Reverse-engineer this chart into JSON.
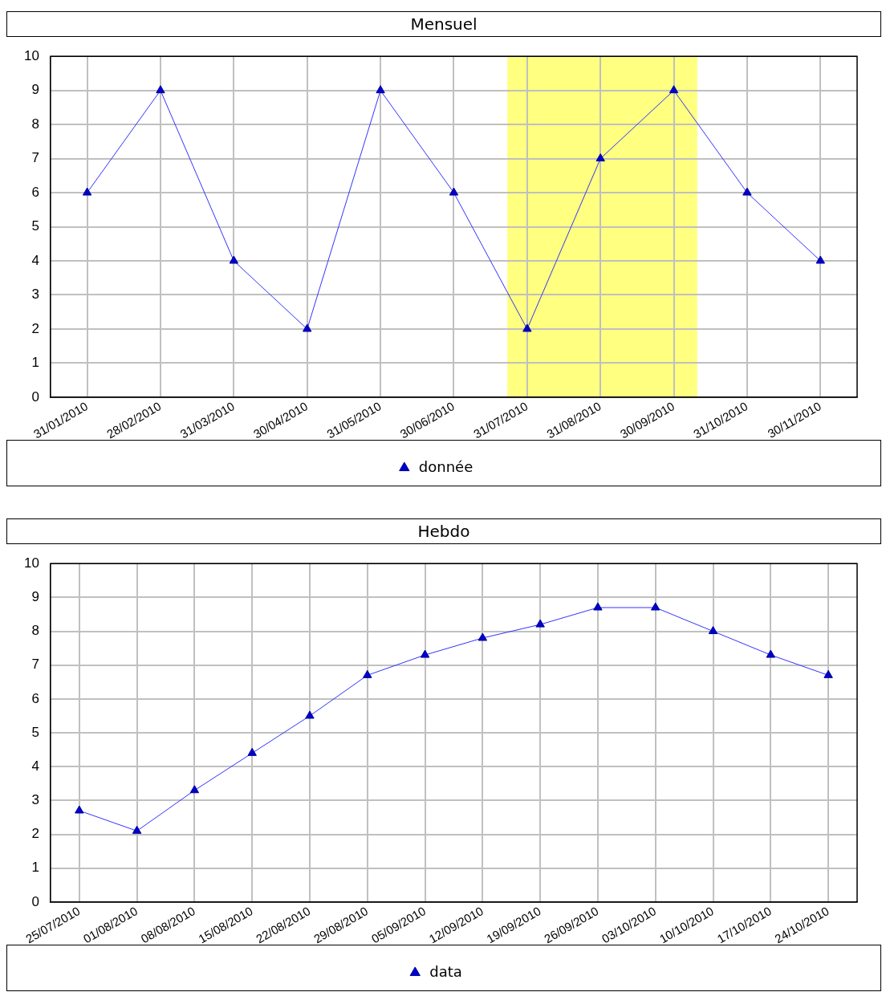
{
  "chart_data": [
    {
      "type": "line",
      "title": "Mensuel",
      "categories": [
        "31/01/2010",
        "28/02/2010",
        "31/03/2010",
        "30/04/2010",
        "31/05/2010",
        "30/06/2010",
        "31/07/2010",
        "31/08/2010",
        "30/09/2010",
        "31/10/2010",
        "30/11/2010"
      ],
      "series": [
        {
          "name": "donnée",
          "color": "#3333ff",
          "values": [
            6,
            9,
            4,
            2,
            9,
            6,
            2,
            7,
            9,
            6,
            4
          ]
        }
      ],
      "ylim": [
        0,
        10
      ],
      "yticks": [
        0,
        1,
        2,
        3,
        4,
        5,
        6,
        7,
        8,
        9,
        10
      ],
      "grid": true,
      "legend": "bottom",
      "marker": "triangle",
      "bands": [
        {
          "axis": "x",
          "from": "31/07/2010",
          "to": "30/09/2010",
          "color": "#ffff80"
        }
      ]
    },
    {
      "type": "line",
      "title": "Hebdo",
      "categories": [
        "25/07/2010",
        "01/08/2010",
        "08/08/2010",
        "15/08/2010",
        "22/08/2010",
        "29/08/2010",
        "05/09/2010",
        "12/09/2010",
        "19/09/2010",
        "26/09/2010",
        "03/10/2010",
        "10/10/2010",
        "17/10/2010",
        "24/10/2010"
      ],
      "series": [
        {
          "name": "data",
          "color": "#3333ff",
          "values": [
            2.7,
            2.1,
            3.3,
            4.4,
            5.5,
            6.7,
            7.3,
            7.8,
            8.2,
            8.7,
            8.7,
            8.0,
            7.3,
            6.7
          ]
        }
      ],
      "ylim": [
        0,
        10
      ],
      "yticks": [
        0,
        1,
        2,
        3,
        4,
        5,
        6,
        7,
        8,
        9,
        10
      ],
      "grid": true,
      "legend": "bottom",
      "marker": "triangle"
    }
  ]
}
